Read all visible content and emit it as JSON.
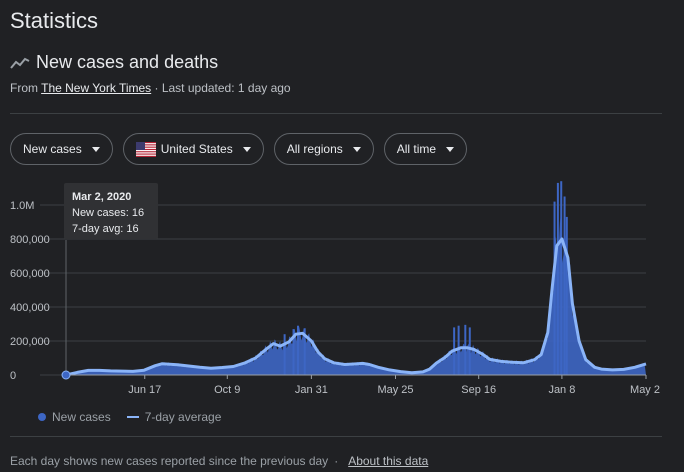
{
  "page": {
    "heading": "Statistics",
    "subheading": "New cases and deaths",
    "source_prefix": "From ",
    "source_name": "The New York Times",
    "updated": " · Last updated: 1 day ago"
  },
  "filters": {
    "metric": "New cases",
    "country": "United States",
    "region": "All regions",
    "time": "All time"
  },
  "tooltip": {
    "date": "Mar 2, 2020",
    "new_cases": "New cases: 16",
    "avg": "7-day avg: 16"
  },
  "legend": {
    "series1": "New cases",
    "series2": "7-day average"
  },
  "footer": {
    "text": "Each day shows new cases reported since the previous day",
    "separator": "·",
    "link": "About this data"
  },
  "colors": {
    "background": "#202124",
    "bar": "#3d66c4",
    "line": "#8ab4f8",
    "grid": "#3c4043"
  },
  "chart_data": {
    "type": "bar",
    "title": "New cases and deaths",
    "ylim": [
      0,
      1000000
    ],
    "y_ticks": [
      {
        "value": 1000000,
        "label": "1.0M"
      },
      {
        "value": 800000,
        "label": "800,000"
      },
      {
        "value": 600000,
        "label": "600,000"
      },
      {
        "value": 400000,
        "label": "400,000"
      },
      {
        "value": 200000,
        "label": "200,000"
      },
      {
        "value": 0,
        "label": "0"
      }
    ],
    "x_range_months": [
      0,
      26
    ],
    "x_ticks": [
      {
        "month": 3.53,
        "label": "Jun 17"
      },
      {
        "month": 7.23,
        "label": "Oct 9"
      },
      {
        "month": 11.0,
        "label": "Jan 31"
      },
      {
        "month": 14.77,
        "label": "May 25"
      },
      {
        "month": 18.5,
        "label": "Sep 16"
      },
      {
        "month": 22.23,
        "label": "Jan 8"
      },
      {
        "month": 26.0,
        "label": "May 2"
      }
    ],
    "series": [
      {
        "name": "7-day average",
        "type": "line",
        "points": [
          [
            0,
            0
          ],
          [
            0.5,
            15000
          ],
          [
            1,
            27000
          ],
          [
            1.5,
            27000
          ],
          [
            2,
            24000
          ],
          [
            3,
            21000
          ],
          [
            3.5,
            28000
          ],
          [
            4,
            55000
          ],
          [
            4.3,
            66000
          ],
          [
            5,
            60000
          ],
          [
            6,
            45000
          ],
          [
            6.5,
            40000
          ],
          [
            7,
            44000
          ],
          [
            7.5,
            50000
          ],
          [
            8,
            70000
          ],
          [
            8.5,
            100000
          ],
          [
            9,
            155000
          ],
          [
            9.3,
            185000
          ],
          [
            9.6,
            170000
          ],
          [
            10,
            195000
          ],
          [
            10.3,
            240000
          ],
          [
            10.6,
            245000
          ],
          [
            11,
            200000
          ],
          [
            11.3,
            135000
          ],
          [
            11.6,
            95000
          ],
          [
            12,
            72000
          ],
          [
            12.5,
            62000
          ],
          [
            13,
            65000
          ],
          [
            13.3,
            68000
          ],
          [
            13.6,
            62000
          ],
          [
            14,
            45000
          ],
          [
            14.5,
            30000
          ],
          [
            15,
            20000
          ],
          [
            15.5,
            13000
          ],
          [
            16,
            18000
          ],
          [
            16.3,
            35000
          ],
          [
            16.6,
            70000
          ],
          [
            17,
            105000
          ],
          [
            17.3,
            140000
          ],
          [
            17.7,
            160000
          ],
          [
            18,
            160000
          ],
          [
            18.3,
            150000
          ],
          [
            18.7,
            120000
          ],
          [
            19,
            92000
          ],
          [
            19.5,
            80000
          ],
          [
            20,
            75000
          ],
          [
            20.5,
            72000
          ],
          [
            21,
            90000
          ],
          [
            21.3,
            120000
          ],
          [
            21.6,
            250000
          ],
          [
            21.8,
            520000
          ],
          [
            22,
            760000
          ],
          [
            22.23,
            800000
          ],
          [
            22.5,
            690000
          ],
          [
            22.7,
            420000
          ],
          [
            23,
            200000
          ],
          [
            23.3,
            90000
          ],
          [
            23.7,
            45000
          ],
          [
            24,
            35000
          ],
          [
            24.5,
            30000
          ],
          [
            25,
            33000
          ],
          [
            25.5,
            45000
          ],
          [
            26,
            65000
          ]
        ]
      }
    ],
    "bar_spikes": [
      [
        9.8,
        240000
      ],
      [
        10.2,
        270000
      ],
      [
        10.4,
        290000
      ],
      [
        10.7,
        275000
      ],
      [
        17.4,
        280000
      ],
      [
        17.6,
        290000
      ],
      [
        17.9,
        295000
      ],
      [
        18.1,
        280000
      ],
      [
        21.9,
        1020000
      ],
      [
        22.05,
        1130000
      ],
      [
        22.2,
        1140000
      ],
      [
        22.35,
        1050000
      ],
      [
        22.45,
        930000
      ]
    ],
    "highlight": {
      "month": 0,
      "value": 16
    }
  }
}
